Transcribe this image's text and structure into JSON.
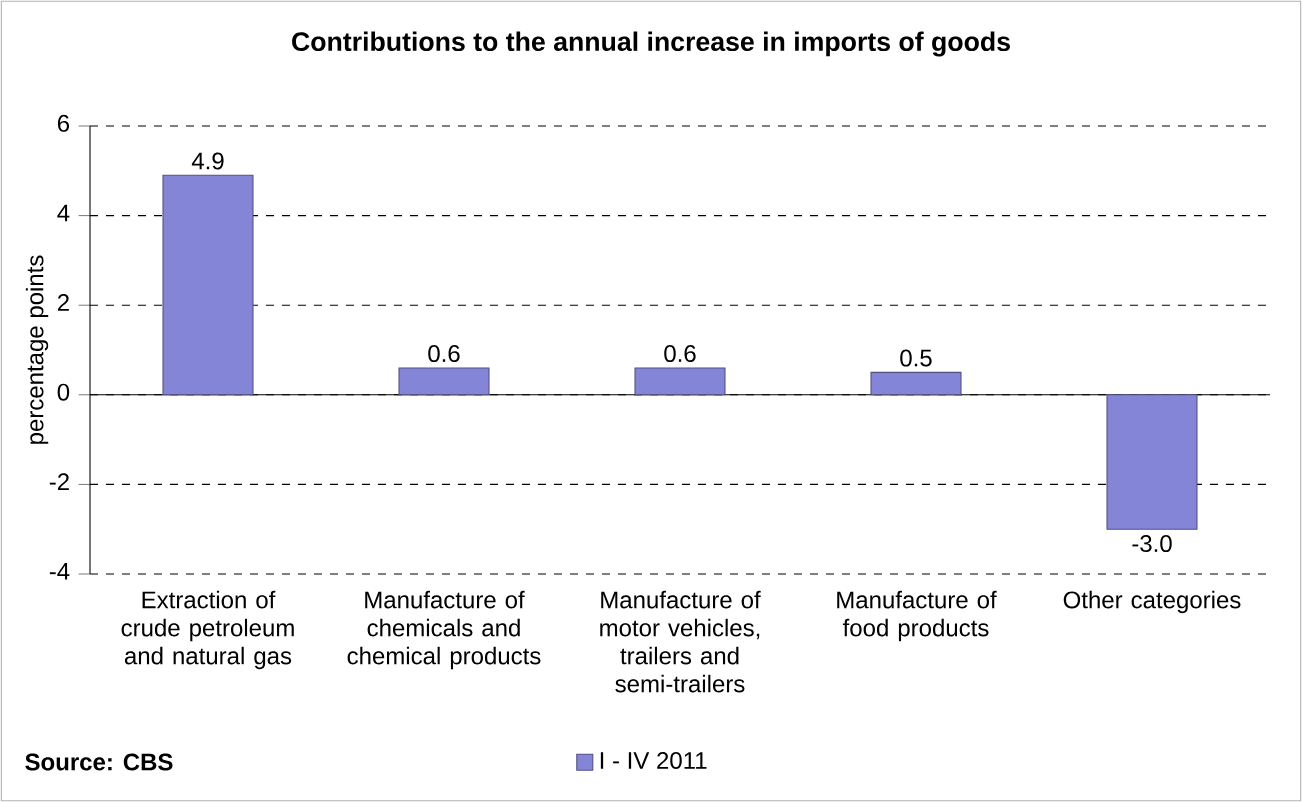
{
  "chart_data": {
    "type": "bar",
    "title": "Contributions to the annual increase in imports of goods",
    "ylabel": "percentage points",
    "categories": [
      "Extraction of crude petroleum and natural gas",
      "Manufacture of chemicals and chemical products",
      "Manufacture of motor vehicles, trailers and semi-trailers",
      "Manufacture of food products",
      "Other categories"
    ],
    "series": [
      {
        "name": "I - IV 2011",
        "color": "#8585d8",
        "values": [
          4.9,
          0.6,
          0.6,
          0.5,
          -3.0
        ],
        "value_labels": [
          "4.9",
          "0.6",
          "0.6",
          "0.5",
          "-3.0"
        ]
      }
    ],
    "ylim": [
      -4,
      6
    ],
    "yticks": [
      -4,
      -2,
      0,
      2,
      4,
      6
    ],
    "grid": "y",
    "legend": "bottom",
    "annotations": [
      "Source: CBS"
    ]
  }
}
